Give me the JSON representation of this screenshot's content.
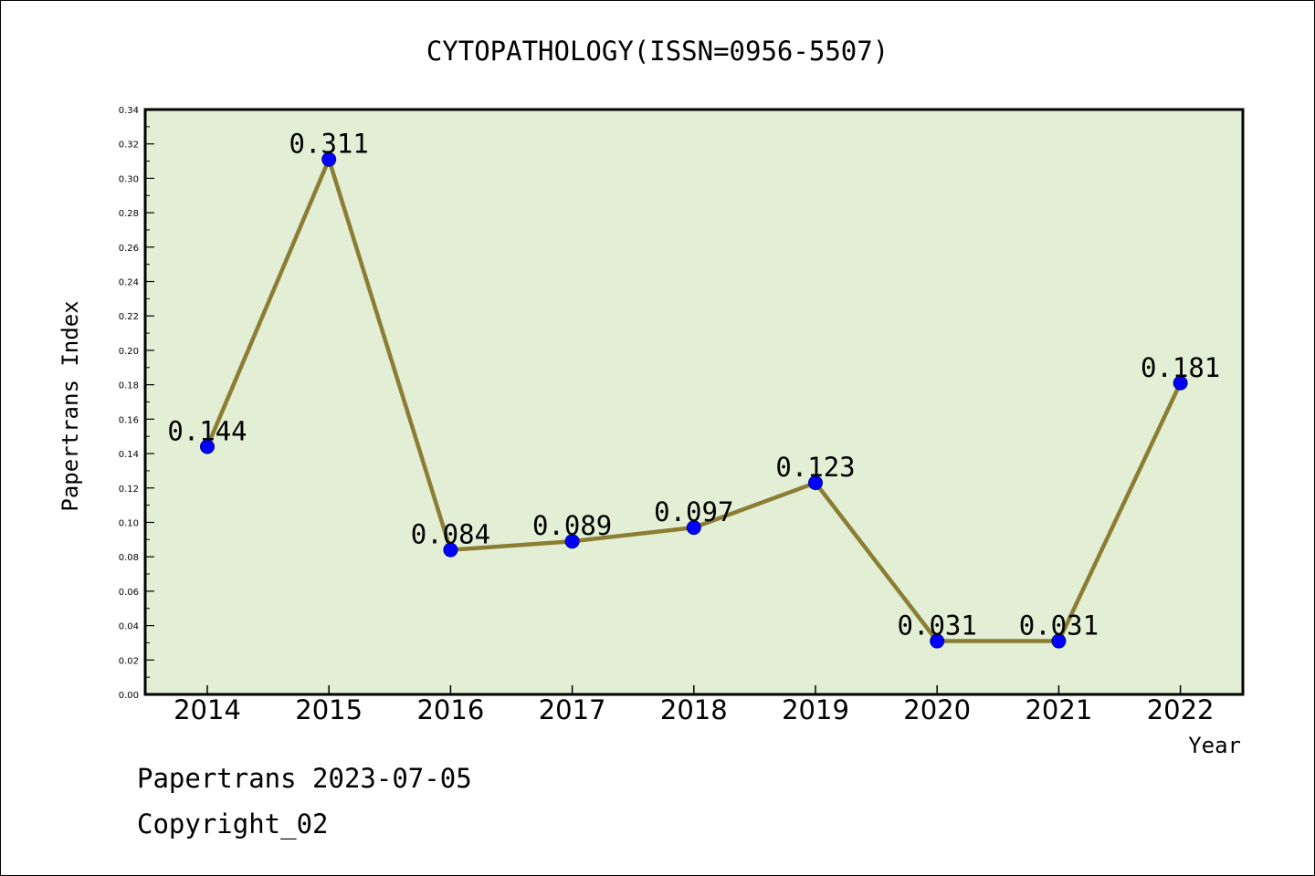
{
  "chart_data": {
    "type": "line",
    "title": "CYTOPATHOLOGY(ISSN=0956-5507)",
    "xlabel": "Year",
    "ylabel": "Papertrans Index",
    "categories": [
      "2014",
      "2015",
      "2016",
      "2017",
      "2018",
      "2019",
      "2020",
      "2021",
      "2022"
    ],
    "series": [
      {
        "values": [
          0.144,
          0.311,
          0.084,
          0.089,
          0.097,
          0.123,
          0.031,
          0.031,
          0.181
        ],
        "labels": [
          "0.144",
          "0.311",
          "0.084",
          "0.089",
          "0.097",
          "0.123",
          "0.031",
          "0.031",
          "0.181"
        ],
        "line_color": "#8b7d33",
        "marker_color": "#0000ff"
      }
    ],
    "ylim": [
      0,
      0.34
    ],
    "yticks": [
      "0.00",
      "0.02",
      "0.04",
      "0.06",
      "0.08",
      "0.10",
      "0.12",
      "0.14",
      "0.16",
      "0.18",
      "0.20",
      "0.22",
      "0.24",
      "0.26",
      "0.28",
      "0.30",
      "0.32",
      "0.34"
    ],
    "plot_background": "#e2efd5",
    "grid": false,
    "legend": "none"
  },
  "footer": {
    "line1": "Papertrans 2023-07-05",
    "line2": "Copyright_02"
  }
}
